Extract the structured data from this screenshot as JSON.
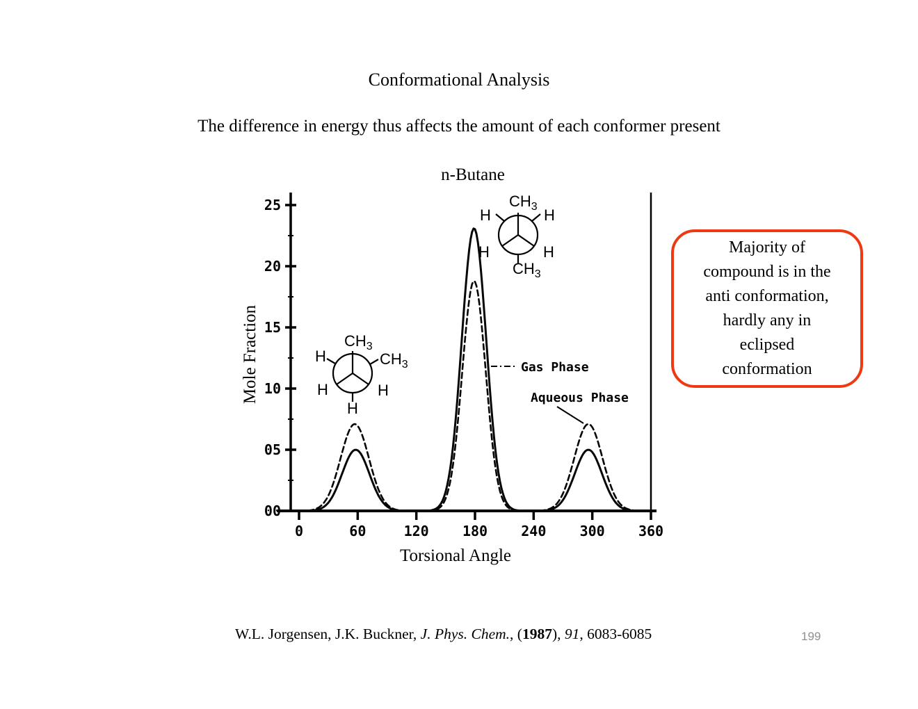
{
  "slide": {
    "title": "Conformational Analysis",
    "subtitle": "The difference in energy thus affects the amount of each conformer present"
  },
  "chart_data": {
    "type": "line",
    "title": "n-Butane",
    "xlabel": "Torsional Angle",
    "ylabel": "Mole Fraction",
    "xlim": [
      0,
      360
    ],
    "ylim": [
      0,
      0.25
    ],
    "grid": false,
    "x_ticks": [
      0,
      60,
      120,
      180,
      240,
      300,
      360
    ],
    "y_tick_labels": [
      "00",
      "05",
      "10",
      "15",
      "20",
      "25"
    ],
    "y_tick_values": [
      0,
      0.05,
      0.1,
      0.15,
      0.2,
      0.25
    ],
    "series": [
      {
        "name": "Gas Phase",
        "line_style": "solid",
        "peaks": [
          {
            "center": 58,
            "height": 0.05,
            "sigma": 14
          },
          {
            "center": 179,
            "height": 0.231,
            "sigma": 12.5
          },
          {
            "center": 296,
            "height": 0.05,
            "sigma": 14
          }
        ],
        "approx_values_at_x_ticks": [
          0,
          0.05,
          0,
          0.23,
          0,
          0.05,
          0
        ]
      },
      {
        "name": "Aqueous Phase",
        "line_style": "dashed",
        "peaks": [
          {
            "center": 57,
            "height": 0.071,
            "sigma": 14.5
          },
          {
            "center": 179,
            "height": 0.188,
            "sigma": 12
          },
          {
            "center": 296,
            "height": 0.071,
            "sigma": 14.5
          }
        ],
        "approx_values_at_x_ticks": [
          0,
          0.07,
          0,
          0.19,
          0,
          0.07,
          0
        ]
      }
    ]
  },
  "newman": {
    "hydrogen": "H",
    "methyl": "CH",
    "methyl_sub": "3"
  },
  "callout": {
    "border_color": "#ee3912",
    "lines": [
      "Majority of",
      "compound is in the",
      "anti conformation,",
      "hardly any in",
      "eclipsed",
      "conformation"
    ]
  },
  "citation": {
    "parts": [
      "W.L. Jorgensen, J.K. Buckner, ",
      "J. Phys. Chem.",
      ", (",
      "1987",
      "), ",
      "91",
      ", 6083-6085"
    ]
  },
  "footer": {
    "page_number": "199",
    "page_number_color": "#8f8f8f"
  }
}
